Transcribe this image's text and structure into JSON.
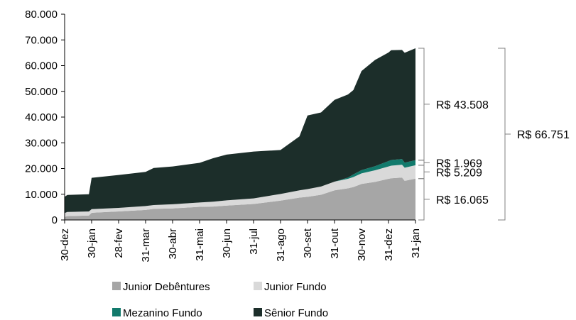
{
  "chart_data": {
    "type": "area",
    "stacked": true,
    "title": "",
    "xlabel": "",
    "ylabel": "",
    "ylim": [
      0,
      80000
    ],
    "yticks": [
      0,
      10000,
      20000,
      30000,
      40000,
      50000,
      60000,
      70000,
      80000
    ],
    "ytick_labels": [
      "0",
      "10.000",
      "20.000",
      "30.000",
      "40.000",
      "50.000",
      "60.000",
      "70.000",
      "80.000"
    ],
    "xtick_labels": [
      "30-dez",
      "30-jan",
      "28-fev",
      "31-mar",
      "30-abr",
      "31-mai",
      "30-jun",
      "31-jul",
      "31-ago",
      "30-set",
      "31-out",
      "30-nov",
      "31-dez",
      "31-jan"
    ],
    "x_index": [
      0,
      0.1,
      0.9,
      1,
      2,
      3,
      3.3,
      4,
      5,
      5.5,
      6,
      7,
      8,
      8.7,
      9,
      9.5,
      10,
      10.5,
      10.7,
      11,
      11.5,
      12,
      12.1,
      12.5,
      12.6,
      13
    ],
    "grid": false,
    "legend": "bottom",
    "series": [
      {
        "name": "Junior Debêntures",
        "color": "#a6a6a6",
        "values": [
          1200,
          1500,
          1700,
          2800,
          3300,
          3900,
          4300,
          4500,
          5100,
          5200,
          5600,
          6200,
          7500,
          8700,
          9000,
          9800,
          11500,
          12300,
          12800,
          14000,
          14800,
          16000,
          16200,
          16500,
          15200,
          16065
        ]
      },
      {
        "name": "Junior Fundo",
        "color": "#d9d9d9",
        "values": [
          1500,
          1600,
          1600,
          1400,
          1400,
          1500,
          1500,
          1600,
          1700,
          1900,
          2000,
          2200,
          2600,
          2800,
          3000,
          3200,
          3400,
          3700,
          3900,
          4100,
          4500,
          4800,
          4900,
          5000,
          5100,
          5209
        ]
      },
      {
        "name": "Mezanino Fundo",
        "color": "#127a6c",
        "values": [
          0,
          0,
          0,
          0,
          0,
          0,
          0,
          0,
          0,
          0,
          0,
          0,
          0,
          0,
          0,
          0,
          0,
          500,
          1000,
          1300,
          1600,
          2100,
          2200,
          2200,
          2000,
          1969
        ]
      },
      {
        "name": "Sênior Fundo",
        "color": "#1c2e2a",
        "values": [
          6300,
          6600,
          6700,
          12200,
          12800,
          13300,
          14400,
          14700,
          15400,
          16900,
          17800,
          18200,
          17100,
          21000,
          28600,
          28800,
          31800,
          32300,
          32800,
          38500,
          41300,
          42200,
          42700,
          42400,
          42700,
          43508
        ]
      }
    ],
    "annotations": [
      {
        "label": "R$ 43.508",
        "from": 23243,
        "to": 66751,
        "style": "inner"
      },
      {
        "label": "R$ 1.969",
        "from": 21274,
        "to": 23243,
        "style": "inner"
      },
      {
        "label": "R$ 5.209",
        "from": 16065,
        "to": 21274,
        "style": "inner"
      },
      {
        "label": "R$ 16.065",
        "from": 0,
        "to": 16065,
        "style": "inner"
      },
      {
        "label": "R$ 66.751",
        "from": 0,
        "to": 66751,
        "style": "outer"
      }
    ]
  }
}
